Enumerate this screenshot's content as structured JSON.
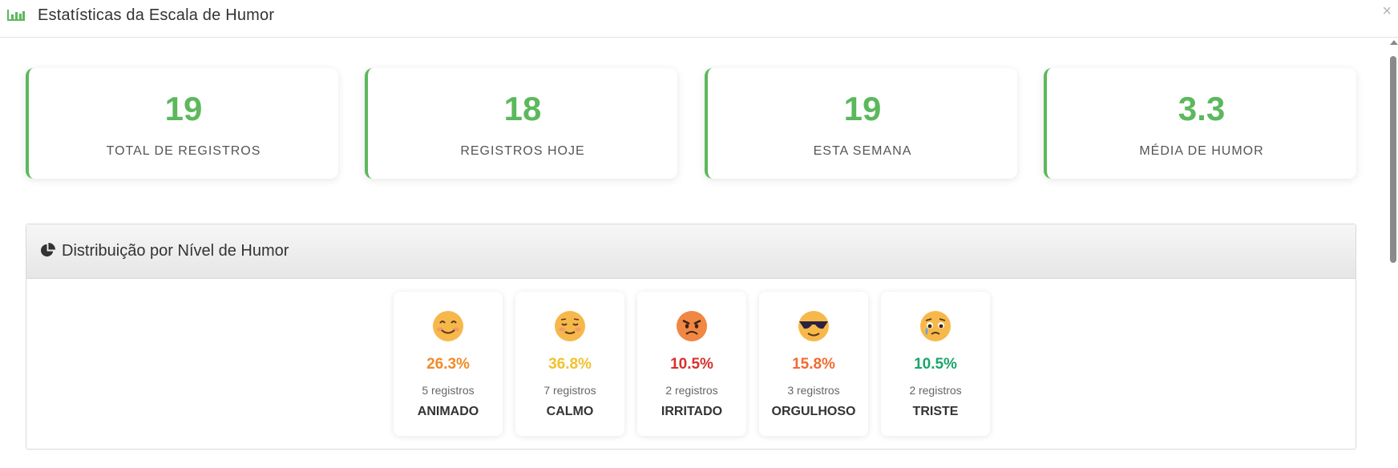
{
  "header": {
    "title": "Estatísticas da Escala de Humor",
    "icon": "bar-chart-icon",
    "close_label": "×"
  },
  "stats": [
    {
      "value": "19",
      "label": "TOTAL DE REGISTROS"
    },
    {
      "value": "18",
      "label": "REGISTROS HOJE"
    },
    {
      "value": "19",
      "label": "ESTA SEMANA"
    },
    {
      "value": "3.3",
      "label": "MÉDIA DE HUMOR"
    }
  ],
  "distribution": {
    "title": "Distribuição por Nível de Humor",
    "icon": "pie-chart-icon",
    "moods": [
      {
        "emoji": "smiling-face-icon",
        "percent": "26.3%",
        "count": "5 registros",
        "name": "ANIMADO",
        "color": "#f08c2a"
      },
      {
        "emoji": "relieved-face-icon",
        "percent": "36.8%",
        "count": "7 registros",
        "name": "CALMO",
        "color": "#f2c12e"
      },
      {
        "emoji": "angry-face-icon",
        "percent": "10.5%",
        "count": "2 registros",
        "name": "IRRITADO",
        "color": "#d9302b"
      },
      {
        "emoji": "sunglasses-face-icon",
        "percent": "15.8%",
        "count": "3 registros",
        "name": "ORGULHOSO",
        "color": "#f26b30"
      },
      {
        "emoji": "sad-face-icon",
        "percent": "10.5%",
        "count": "2 registros",
        "name": "TRISTE",
        "color": "#1aa66b"
      }
    ]
  },
  "colors": {
    "accent": "#5cb85c"
  }
}
